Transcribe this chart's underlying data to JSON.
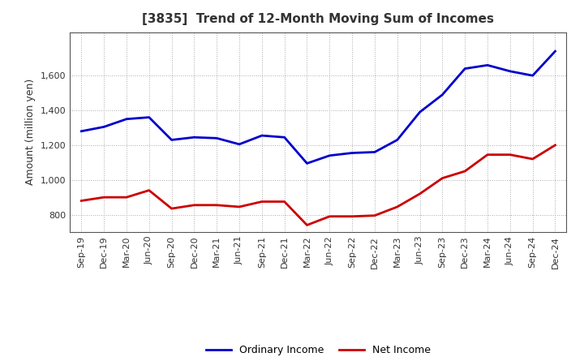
{
  "title": "[3835]  Trend of 12-Month Moving Sum of Incomes",
  "ylabel": "Amount (million yen)",
  "x_labels": [
    "Sep-19",
    "Dec-19",
    "Mar-20",
    "Jun-20",
    "Sep-20",
    "Dec-20",
    "Mar-21",
    "Jun-21",
    "Sep-21",
    "Dec-21",
    "Mar-22",
    "Jun-22",
    "Sep-22",
    "Dec-22",
    "Mar-23",
    "Jun-23",
    "Sep-23",
    "Dec-23",
    "Mar-24",
    "Jun-24",
    "Sep-24",
    "Dec-24"
  ],
  "ordinary_income": [
    1280,
    1305,
    1350,
    1360,
    1230,
    1245,
    1240,
    1205,
    1255,
    1245,
    1095,
    1140,
    1155,
    1160,
    1230,
    1390,
    1490,
    1640,
    1660,
    1625,
    1600,
    1740
  ],
  "net_income": [
    880,
    900,
    900,
    940,
    835,
    855,
    855,
    845,
    875,
    875,
    740,
    790,
    790,
    795,
    845,
    920,
    1010,
    1050,
    1145,
    1145,
    1120,
    1200
  ],
  "ordinary_color": "#0000CC",
  "net_color": "#CC0000",
  "ylim_min": 700,
  "ylim_max": 1850,
  "yticks": [
    800,
    1000,
    1200,
    1400,
    1600
  ],
  "background_color": "#FFFFFF",
  "grid_color": "#AAAAAA",
  "title_color": "#333333",
  "tick_label_color": "#333333"
}
